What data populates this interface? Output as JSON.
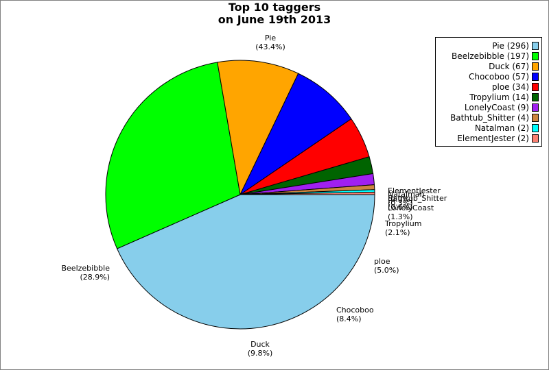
{
  "chart_data": {
    "type": "pie",
    "title": [
      "Top 10 taggers",
      "on June 19th 2013"
    ],
    "slices": [
      {
        "name": "Pie",
        "count": 296,
        "percent_label": "(43.4%)",
        "color": "#87ceeb"
      },
      {
        "name": "Beelzebibble",
        "count": 197,
        "percent_label": "(28.9%)",
        "color": "#00ff00"
      },
      {
        "name": "Duck",
        "count": 67,
        "percent_label": "(9.8%)",
        "color": "#ffa500"
      },
      {
        "name": "Chocoboo",
        "count": 57,
        "percent_label": "(8.4%)",
        "color": "#0000ff"
      },
      {
        "name": "ploe",
        "count": 34,
        "percent_label": "(5.0%)",
        "color": "#ff0000"
      },
      {
        "name": "Tropylium",
        "count": 14,
        "percent_label": "(2.1%)",
        "color": "#006400"
      },
      {
        "name": "LonelyCoast",
        "count": 9,
        "percent_label": "(1.3%)",
        "color": "#a020f0"
      },
      {
        "name": "Bathtub_Shitter",
        "count": 4,
        "percent_label": "(0.6%)",
        "color": "#cd853f"
      },
      {
        "name": "Natalman",
        "count": 2,
        "percent_label": "(0.3%)",
        "color": "#00ffff"
      },
      {
        "name": "ElementJester",
        "count": 2,
        "percent_label": "(0.3%)",
        "color": "#fa8072"
      }
    ],
    "legend_entries": [
      "Pie (296)",
      "Beelzebibble (197)",
      "Duck (67)",
      "Chocoboo (57)",
      "ploe (34)",
      "Tropylium (14)",
      "LonelyCoast (9)",
      "Bathtub_Shitter (4)",
      "Natalman (2)",
      "ElementJester (2)"
    ],
    "legend_position": "top-right",
    "start_angle": "3 o'clock",
    "direction": "clockwise"
  }
}
